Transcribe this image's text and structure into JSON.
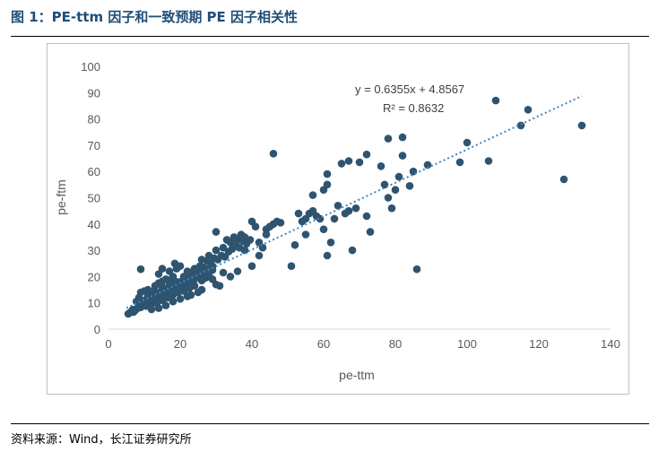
{
  "figure": {
    "title": "图 1：PE-ttm 因子和一致预期 PE 因子相关性",
    "source": "资料来源：Wind，长江证券研究所"
  },
  "colors": {
    "title": "#1f4e79",
    "points": "#2f5470",
    "trendline": "#3d85c6",
    "axis_text": "#595959",
    "axis_line": "#d9d9d9"
  },
  "chart_data": {
    "type": "scatter",
    "title": "",
    "xlabel": "pe-ttm",
    "ylabel": "pe-ftm",
    "xlim": [
      0,
      140
    ],
    "ylim": [
      0,
      100
    ],
    "x_ticks": [
      "0",
      "20",
      "40",
      "60",
      "80",
      "100",
      "120",
      "140"
    ],
    "y_ticks": [
      "0",
      "10",
      "20",
      "30",
      "40",
      "50",
      "60",
      "70",
      "80",
      "90",
      "100"
    ],
    "grid": false,
    "trendline": {
      "slope": 0.6355,
      "intercept": 4.8567,
      "x_range": [
        5,
        132
      ]
    },
    "annotations": [
      "y = 0.6355x + 4.8567",
      "R² = 0.8632"
    ],
    "points": [
      [
        5.5,
        5.8
      ],
      [
        6,
        6.3
      ],
      [
        6.5,
        6.8
      ],
      [
        6.8,
        7.5
      ],
      [
        7,
        6.5
      ],
      [
        7.5,
        7.2
      ],
      [
        8,
        7.8
      ],
      [
        8.5,
        8.5
      ],
      [
        9,
        8.3
      ],
      [
        9.5,
        9.1
      ],
      [
        7.8,
        10.5
      ],
      [
        8.5,
        12
      ],
      [
        9,
        11
      ],
      [
        9.5,
        10.3
      ],
      [
        10,
        9.6
      ],
      [
        10.5,
        11.3
      ],
      [
        11,
        12.1
      ],
      [
        11.5,
        10.6
      ],
      [
        12,
        11.8
      ],
      [
        12.5,
        13.3
      ],
      [
        13,
        12.4
      ],
      [
        13.5,
        11.5
      ],
      [
        14,
        13.9
      ],
      [
        14.5,
        12.9
      ],
      [
        15,
        14.6
      ],
      [
        15.5,
        13.6
      ],
      [
        16,
        15.3
      ],
      [
        16.5,
        14.1
      ],
      [
        17,
        16
      ],
      [
        17.5,
        15.1
      ],
      [
        18,
        16.7
      ],
      [
        18.5,
        15.6
      ],
      [
        19,
        17.5
      ],
      [
        19.5,
        16.2
      ],
      [
        20,
        18
      ],
      [
        20.5,
        17
      ],
      [
        21,
        18.8
      ],
      [
        21.5,
        17.6
      ],
      [
        22,
        19.5
      ],
      [
        22.5,
        18.4
      ],
      [
        9,
        14
      ],
      [
        10,
        14.5
      ],
      [
        11,
        15
      ],
      [
        12,
        14.2
      ],
      [
        13,
        16.5
      ],
      [
        14,
        17.5
      ],
      [
        15,
        18.2
      ],
      [
        16,
        19
      ],
      [
        17,
        18.5
      ],
      [
        18,
        20
      ],
      [
        10.5,
        8.8
      ],
      [
        12,
        9.5
      ],
      [
        13.5,
        10
      ],
      [
        15,
        11
      ],
      [
        16.5,
        12
      ],
      [
        18,
        13
      ],
      [
        19.5,
        14
      ],
      [
        21,
        14.5
      ],
      [
        22.5,
        15.5
      ],
      [
        24,
        16.5
      ],
      [
        11,
        12.5
      ],
      [
        13,
        14
      ],
      [
        15,
        16
      ],
      [
        17,
        17
      ],
      [
        19,
        18
      ],
      [
        21,
        20
      ],
      [
        23,
        21
      ],
      [
        25,
        22
      ],
      [
        27,
        23
      ],
      [
        29,
        24
      ],
      [
        24,
        22.5
      ],
      [
        25.5,
        24
      ],
      [
        26.5,
        23.5
      ],
      [
        27.5,
        26
      ],
      [
        28.5,
        25
      ],
      [
        29.5,
        27
      ],
      [
        30.5,
        26.5
      ],
      [
        31.5,
        28
      ],
      [
        32.5,
        27.5
      ],
      [
        33.5,
        29.5
      ],
      [
        34.5,
        30.5
      ],
      [
        35.5,
        32
      ],
      [
        36.5,
        31
      ],
      [
        37.5,
        33.5
      ],
      [
        38.5,
        32.5
      ],
      [
        39.5,
        34
      ],
      [
        30,
        30
      ],
      [
        32,
        31
      ],
      [
        34,
        33
      ],
      [
        36,
        34
      ],
      [
        9,
        22.8
      ],
      [
        14,
        21
      ],
      [
        15,
        23
      ],
      [
        17,
        22
      ],
      [
        18.5,
        25
      ],
      [
        19,
        23
      ],
      [
        20,
        24
      ],
      [
        22,
        22
      ],
      [
        23,
        21.5
      ],
      [
        24,
        23
      ],
      [
        25,
        20
      ],
      [
        26,
        18.5
      ],
      [
        27,
        19.5
      ],
      [
        28,
        21
      ],
      [
        29,
        22.5
      ],
      [
        30,
        17
      ],
      [
        31,
        16.5
      ],
      [
        32,
        21.5
      ],
      [
        28,
        28
      ],
      [
        26,
        26.5
      ],
      [
        30,
        37
      ],
      [
        33,
        34
      ],
      [
        35,
        35
      ],
      [
        37,
        36
      ],
      [
        38,
        30
      ],
      [
        40,
        41
      ],
      [
        41,
        39
      ],
      [
        42,
        33
      ],
      [
        43,
        31
      ],
      [
        44,
        38
      ],
      [
        46,
        40
      ],
      [
        47,
        41
      ],
      [
        48,
        40.5
      ],
      [
        45,
        39
      ],
      [
        42,
        28
      ],
      [
        40,
        24
      ],
      [
        44,
        36
      ],
      [
        38,
        35
      ],
      [
        36,
        22
      ],
      [
        34,
        20
      ],
      [
        46,
        66.8
      ],
      [
        51,
        24
      ],
      [
        52,
        32
      ],
      [
        53,
        44
      ],
      [
        54,
        41
      ],
      [
        55,
        36
      ],
      [
        55,
        42
      ],
      [
        56,
        44
      ],
      [
        57,
        45
      ],
      [
        57,
        51
      ],
      [
        58,
        43
      ],
      [
        59,
        42
      ],
      [
        60,
        38
      ],
      [
        60,
        53
      ],
      [
        61,
        55
      ],
      [
        61,
        59
      ],
      [
        61,
        28
      ],
      [
        62,
        33
      ],
      [
        63,
        42
      ],
      [
        64,
        47
      ],
      [
        65,
        63
      ],
      [
        66,
        44
      ],
      [
        67,
        45
      ],
      [
        67,
        64
      ],
      [
        68,
        30
      ],
      [
        69,
        46
      ],
      [
        70,
        63.5
      ],
      [
        72,
        43
      ],
      [
        72,
        66.5
      ],
      [
        73,
        37
      ],
      [
        76,
        62
      ],
      [
        77,
        55
      ],
      [
        78,
        50
      ],
      [
        78,
        72.5
      ],
      [
        79,
        46
      ],
      [
        80,
        53
      ],
      [
        81,
        58
      ],
      [
        82,
        66
      ],
      [
        82,
        73
      ],
      [
        84,
        54.5
      ],
      [
        85,
        60
      ],
      [
        86,
        22.8
      ],
      [
        89,
        62.5
      ],
      [
        98,
        63.5
      ],
      [
        100,
        71
      ],
      [
        106,
        64
      ],
      [
        108,
        87
      ],
      [
        115,
        77.5
      ],
      [
        117,
        83.5
      ],
      [
        127,
        57
      ],
      [
        132,
        77.5
      ],
      [
        12,
        7.5
      ],
      [
        14,
        8
      ],
      [
        16,
        9
      ],
      [
        18,
        10.5
      ],
      [
        20,
        11.5
      ],
      [
        22,
        12.5
      ],
      [
        23,
        13
      ],
      [
        25,
        14
      ],
      [
        26,
        15
      ],
      [
        20,
        16
      ],
      [
        21,
        17
      ],
      [
        22,
        18
      ],
      [
        23,
        17.5
      ],
      [
        24,
        19
      ],
      [
        25,
        20.5
      ],
      [
        26,
        21
      ],
      [
        27,
        22
      ],
      [
        28,
        20
      ],
      [
        29,
        19
      ]
    ]
  }
}
